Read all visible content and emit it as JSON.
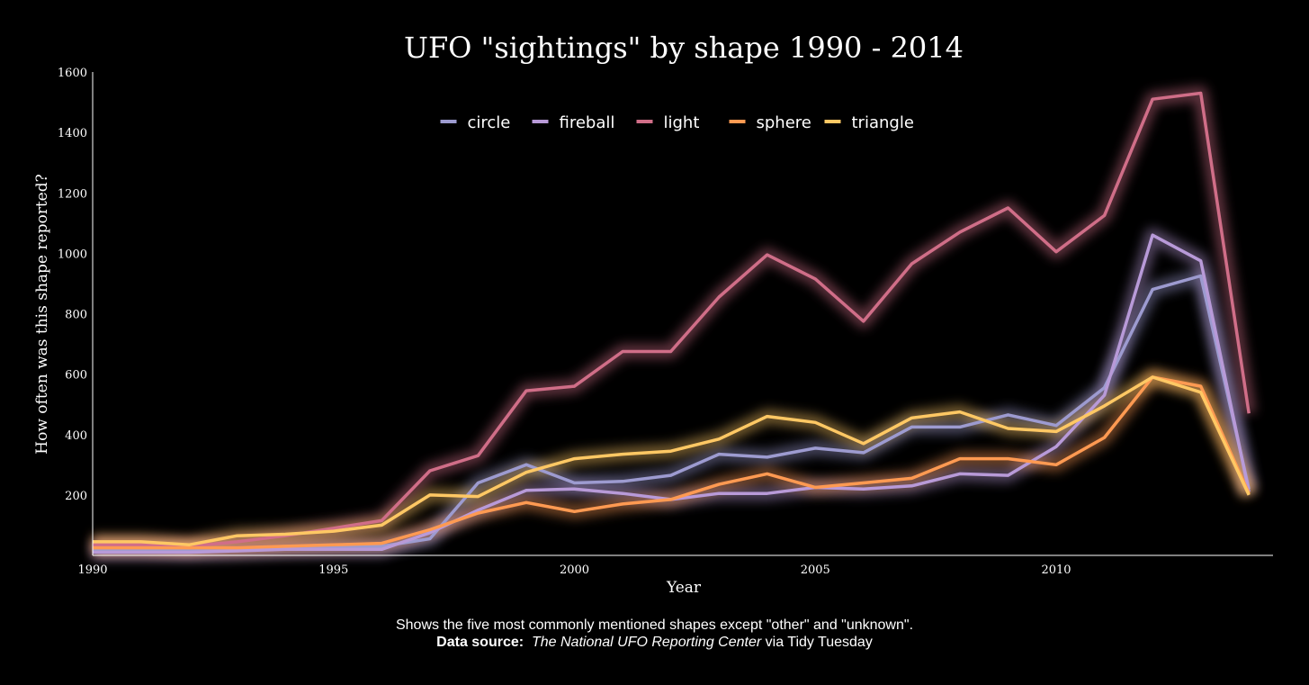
{
  "chart_data": {
    "type": "line",
    "title": "UFO \"sightings\" by shape 1990 - 2014",
    "xlabel": "Year",
    "ylabel": "How often was this shape reported?",
    "xlim": [
      1990,
      2014.5
    ],
    "ylim": [
      0,
      1600
    ],
    "x_ticks": [
      1990,
      1995,
      2000,
      2005,
      2010
    ],
    "y_ticks": [
      200,
      400,
      600,
      800,
      1000,
      1200,
      1400,
      1600
    ],
    "legend_position": "top-center",
    "grid": false,
    "x": [
      1990,
      1991,
      1992,
      1993,
      1994,
      1995,
      1996,
      1997,
      1998,
      1999,
      2000,
      2001,
      2002,
      2003,
      2004,
      2005,
      2006,
      2007,
      2008,
      2009,
      2010,
      2011,
      2012,
      2013,
      2014
    ],
    "series": [
      {
        "name": "circle",
        "color": "#9d9bd0",
        "values": [
          20,
          20,
          15,
          20,
          25,
          30,
          30,
          55,
          240,
          300,
          240,
          245,
          265,
          335,
          325,
          355,
          340,
          425,
          425,
          465,
          430,
          555,
          880,
          925,
          220
        ]
      },
      {
        "name": "fireball",
        "color": "#b89ad8",
        "values": [
          10,
          10,
          10,
          15,
          20,
          20,
          20,
          75,
          150,
          215,
          220,
          205,
          185,
          205,
          205,
          225,
          220,
          230,
          270,
          265,
          360,
          530,
          1060,
          975,
          210
        ]
      },
      {
        "name": "light",
        "color": "#d06e88",
        "values": [
          35,
          35,
          30,
          45,
          65,
          90,
          115,
          280,
          330,
          545,
          560,
          675,
          675,
          855,
          995,
          915,
          775,
          965,
          1070,
          1150,
          1005,
          1125,
          1510,
          1530,
          470
        ]
      },
      {
        "name": "sphere",
        "color": "#ff9a52",
        "values": [
          25,
          25,
          25,
          25,
          30,
          35,
          40,
          85,
          140,
          175,
          145,
          170,
          185,
          235,
          270,
          225,
          240,
          255,
          320,
          320,
          300,
          390,
          590,
          560,
          205
        ]
      },
      {
        "name": "triangle",
        "color": "#ffc864",
        "values": [
          45,
          45,
          35,
          65,
          70,
          80,
          100,
          200,
          195,
          275,
          320,
          335,
          345,
          385,
          460,
          440,
          370,
          455,
          475,
          420,
          410,
          495,
          590,
          540,
          200
        ]
      }
    ]
  },
  "caption": {
    "line1": "Shows the five most commonly mentioned shapes except \"other\" and \"unknown\".",
    "source_label": "Data source:",
    "source_name": "The National UFO Reporting Center",
    "source_suffix": " via Tidy Tuesday"
  }
}
